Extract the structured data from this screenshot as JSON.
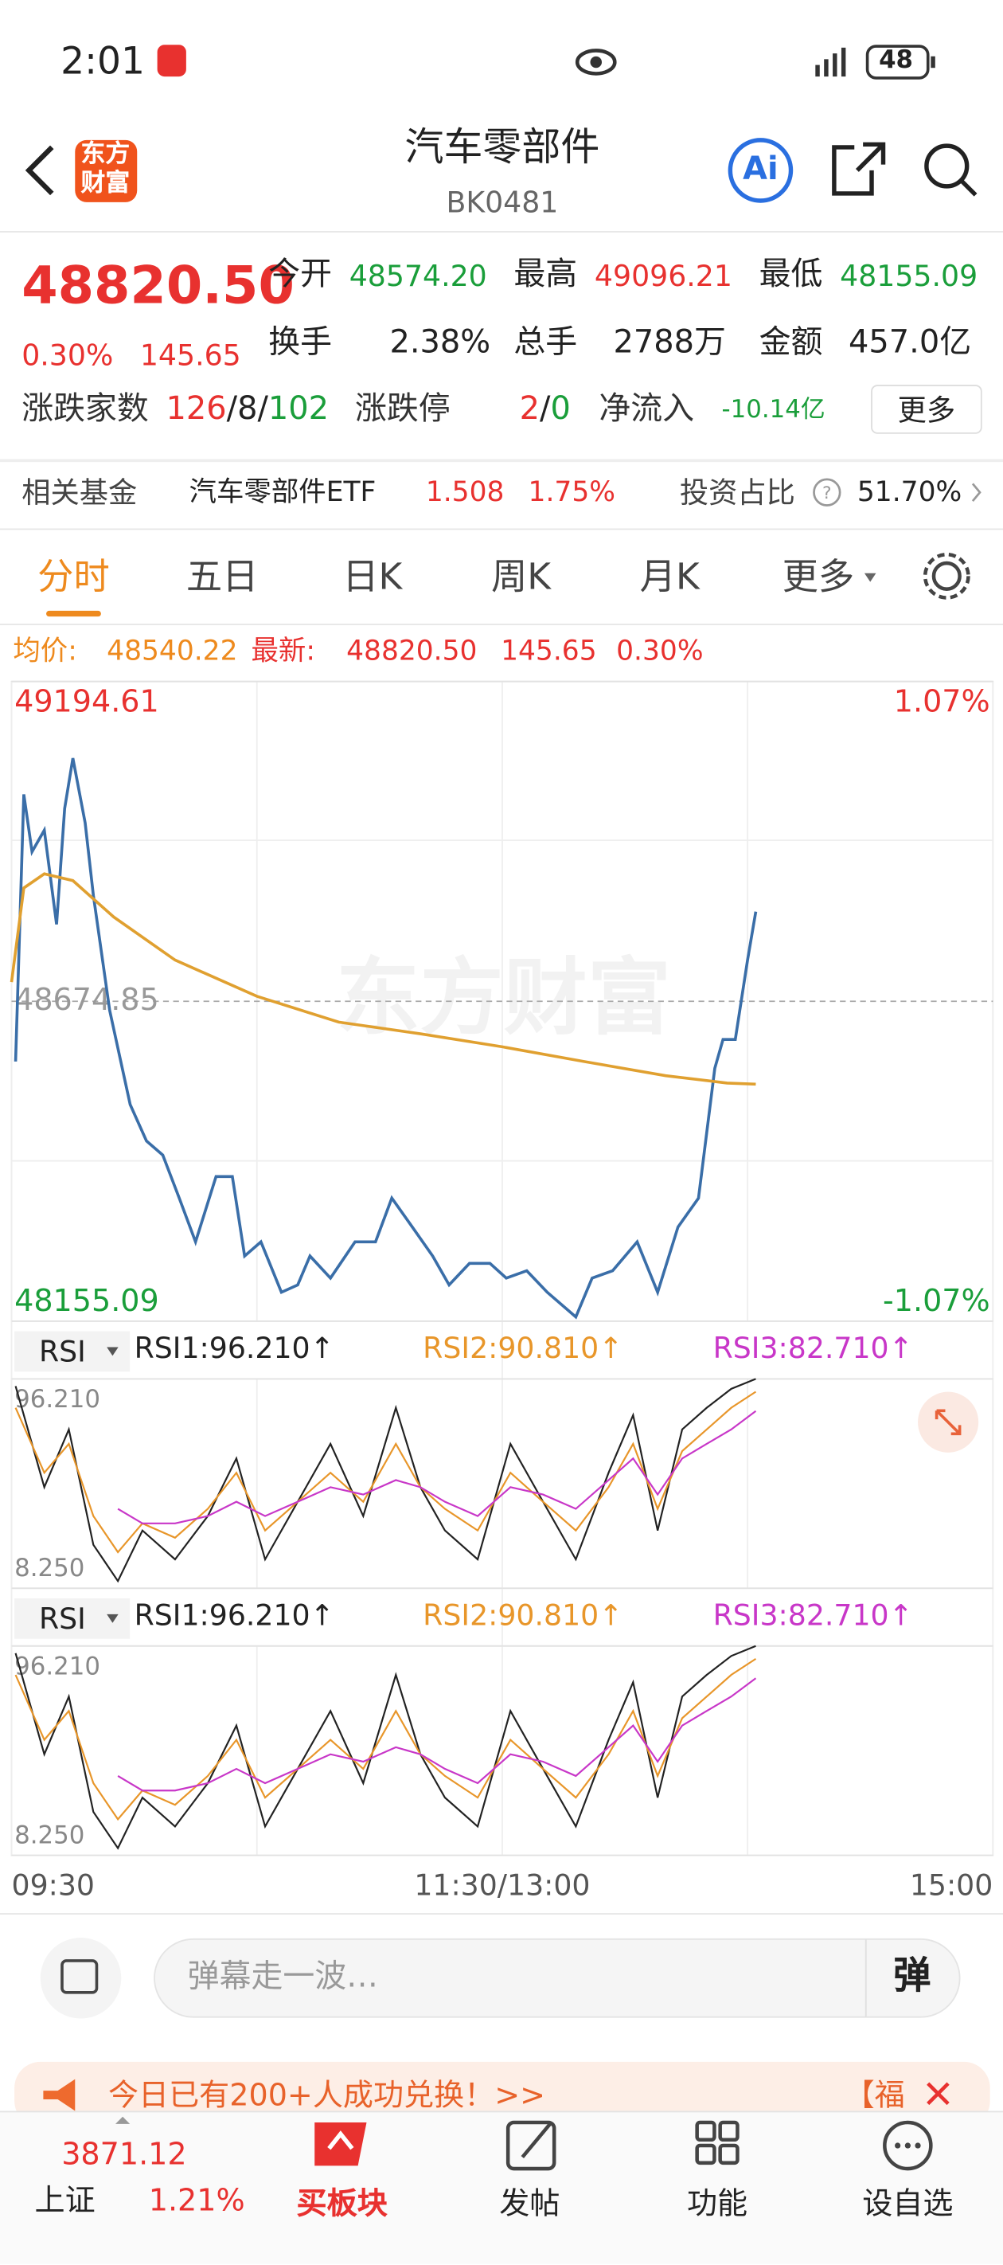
{
  "status_bar": {
    "time": "2:01",
    "battery": "48"
  },
  "header": {
    "logo": [
      "东方",
      "财富"
    ],
    "title": "汽车零部件",
    "code": "BK0481",
    "ai": "Ai"
  },
  "quote": {
    "price": "48820.50",
    "change_pct": "0.30%",
    "change": "145.65",
    "fields": [
      {
        "label": "今开",
        "value": "48574.20"
      },
      {
        "label": "最高",
        "value": "49096.21"
      },
      {
        "label": "最低",
        "value": "48155.09"
      },
      {
        "label": "换手",
        "value": "2.38%"
      },
      {
        "label": "总手",
        "value": "2788万"
      },
      {
        "label": "金额",
        "value": "457.0亿"
      }
    ],
    "breadth_label": "涨跌家数",
    "up": "126",
    "flat": "8",
    "down": "102",
    "separator": "/",
    "limit_label": "涨跌停",
    "limit_up": "2",
    "limit_down": "0",
    "inflow_label": "净流入",
    "inflow": "-10.14亿",
    "more": "更多"
  },
  "fund": {
    "label": "相关基金",
    "name": "汽车零部件ETF",
    "price": "1.508",
    "pct": "1.75%",
    "ratio_label": "投资占比",
    "ratio": "51.70%"
  },
  "tabs": [
    "分时",
    "五日",
    "日K",
    "周K",
    "月K",
    "更多"
  ],
  "info_bar": {
    "avg_label": "均价:",
    "avg": "48540.22",
    "latest_label": "最新:",
    "latest": "48820.50",
    "change": "145.65",
    "pct": "0.30%"
  },
  "watermark": "东方财富",
  "chart_data": [
    {
      "type": "line",
      "xlim": [
        0,
        240
      ],
      "xticks": [
        {
          "value": 0,
          "label": "09:30"
        },
        {
          "value": 120,
          "label": "11:30/13:00"
        },
        {
          "value": 240,
          "label": "15:00"
        }
      ],
      "ylim": [
        48155.09,
        49194.61
      ],
      "yticks": [
        49194.61,
        48674.85,
        48155.09
      ],
      "y2lim": [
        -1.07,
        1.07
      ],
      "y2ticks": [
        {
          "value": 1.07,
          "label": "1.07%"
        },
        {
          "value": -1.07,
          "label": "-1.07%"
        }
      ],
      "series": [
        {
          "color": "#3a6ea8",
          "x": [
            1,
            3,
            5,
            8,
            11,
            13,
            15,
            18,
            20,
            24,
            29,
            33,
            37,
            41,
            45,
            50,
            54,
            57,
            61,
            66,
            70,
            73,
            78,
            84,
            89,
            93,
            98,
            103,
            107,
            112,
            117,
            121,
            126,
            131,
            138,
            142,
            147,
            153,
            158,
            163,
            168,
            172,
            174,
            177,
            180,
            182
          ],
          "values": [
            48577,
            49011,
            48918,
            48953,
            48800,
            48988,
            49070,
            48965,
            48847,
            48660,
            48507,
            48448,
            48425,
            48355,
            48284,
            48390,
            48390,
            48261,
            48284,
            48202,
            48214,
            48261,
            48225,
            48284,
            48284,
            48355,
            48308,
            48261,
            48214,
            48249,
            48249,
            48225,
            48237,
            48202,
            48162,
            48225,
            48237,
            48284,
            48202,
            48308,
            48355,
            48566,
            48613,
            48613,
            48742,
            48820.5
          ]
        },
        {
          "color": "#e0a030",
          "x": [
            0,
            3,
            8,
            15,
            25,
            40,
            60,
            80,
            100,
            120,
            140,
            160,
            175,
            182
          ],
          "values": [
            48706,
            48859,
            48882,
            48871,
            48812,
            48742,
            48683,
            48641,
            48622,
            48601,
            48577,
            48554,
            48542,
            48540.22
          ]
        }
      ]
    },
    {
      "type": "line",
      "indicator": "RSI",
      "xlim": [
        0,
        240
      ],
      "ylim": [
        8.25,
        96.21
      ],
      "yticks": [
        {
          "value": 96.21,
          "label": "96.210"
        },
        {
          "value": 8.25,
          "label": "8.250"
        }
      ],
      "x": [
        1,
        8,
        14,
        20,
        26,
        32,
        40,
        48,
        55,
        62,
        70,
        78,
        86,
        94,
        100,
        106,
        114,
        122,
        130,
        138,
        146,
        152,
        158,
        164,
        170,
        176,
        182
      ],
      "series": [
        {
          "name": "RSI1:96.210↑",
          "color": "#222222",
          "values": [
            93.2,
            50.7,
            75.0,
            26.5,
            11.3,
            32.5,
            20.4,
            38.6,
            62.8,
            20.4,
            44.6,
            68.9,
            38.6,
            84.1,
            50.7,
            32.5,
            20.4,
            68.9,
            44.6,
            20.4,
            56.8,
            81.0,
            32.5,
            75.0,
            84.1,
            92.0,
            96.21
          ]
        },
        {
          "name": "RSI2:90.810↑",
          "color": "#e8962a",
          "values": [
            84.1,
            56.8,
            68.9,
            38.6,
            23.4,
            35.5,
            29.5,
            41.6,
            56.8,
            32.5,
            44.6,
            56.8,
            44.6,
            68.9,
            50.7,
            41.6,
            32.5,
            56.8,
            44.6,
            32.5,
            50.7,
            68.9,
            41.6,
            65.9,
            75.0,
            84.1,
            90.81
          ]
        },
        {
          "name": "RSI3:82.710↑",
          "color": "#c837c8",
          "values": [
            null,
            null,
            null,
            null,
            41.6,
            35.5,
            35.5,
            38.6,
            44.6,
            38.6,
            44.6,
            50.7,
            47.6,
            53.7,
            50.7,
            44.6,
            38.6,
            50.7,
            47.6,
            41.6,
            53.7,
            62.8,
            47.6,
            62.8,
            68.9,
            75.0,
            82.71
          ]
        }
      ]
    },
    {
      "type": "line",
      "indicator": "RSI",
      "xlim": [
        0,
        240
      ],
      "ylim": [
        8.25,
        96.21
      ],
      "yticks": [
        {
          "value": 96.21,
          "label": "96.210"
        },
        {
          "value": 8.25,
          "label": "8.250"
        }
      ],
      "x": [
        1,
        8,
        14,
        20,
        26,
        32,
        40,
        48,
        55,
        62,
        70,
        78,
        86,
        94,
        100,
        106,
        114,
        122,
        130,
        138,
        146,
        152,
        158,
        164,
        170,
        176,
        182
      ],
      "series": [
        {
          "name": "RSI1:96.210↑",
          "color": "#222222",
          "values": [
            93.2,
            50.7,
            75.0,
            26.5,
            11.3,
            32.5,
            20.4,
            38.6,
            62.8,
            20.4,
            44.6,
            68.9,
            38.6,
            84.1,
            50.7,
            32.5,
            20.4,
            68.9,
            44.6,
            20.4,
            56.8,
            81.0,
            32.5,
            75.0,
            84.1,
            92.0,
            96.21
          ]
        },
        {
          "name": "RSI2:90.810↑",
          "color": "#e8962a",
          "values": [
            84.1,
            56.8,
            68.9,
            38.6,
            23.4,
            35.5,
            29.5,
            41.6,
            56.8,
            32.5,
            44.6,
            56.8,
            44.6,
            68.9,
            50.7,
            41.6,
            32.5,
            56.8,
            44.6,
            32.5,
            50.7,
            68.9,
            41.6,
            65.9,
            75.0,
            84.1,
            90.81
          ]
        },
        {
          "name": "RSI3:82.710↑",
          "color": "#c837c8",
          "values": [
            null,
            null,
            null,
            null,
            41.6,
            35.5,
            35.5,
            38.6,
            44.6,
            38.6,
            44.6,
            50.7,
            47.6,
            53.7,
            50.7,
            44.6,
            38.6,
            50.7,
            47.6,
            41.6,
            53.7,
            62.8,
            47.6,
            62.8,
            68.9,
            75.0,
            82.71
          ]
        }
      ]
    }
  ],
  "comment": {
    "placeholder": "弹幕走一波…",
    "button": "弹"
  },
  "banner": {
    "text": "今日已有200+人成功兑换！>>",
    "tag": "【福"
  },
  "bottom_nav": {
    "index_value": "3871.12",
    "index_name": "上证",
    "index_pct": "1.21%",
    "items": [
      "买板块",
      "发帖",
      "功能",
      "设自选"
    ]
  }
}
